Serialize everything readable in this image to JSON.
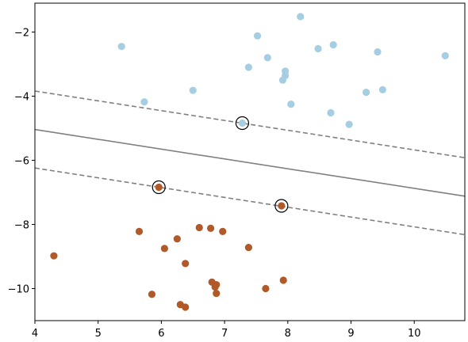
{
  "chart_data": {
    "type": "scatter",
    "title": "",
    "xlabel": "",
    "ylabel": "",
    "xlim": [
      4.0,
      10.8
    ],
    "ylim": [
      -11.0,
      -1.1
    ],
    "xticks": [
      4,
      5,
      6,
      7,
      8,
      9,
      10
    ],
    "yticks": [
      -10,
      -8,
      -6,
      -4,
      -2
    ],
    "xtick_labels": [
      "4",
      "5",
      "6",
      "7",
      "8",
      "9",
      "10"
    ],
    "ytick_labels": [
      "−10",
      "−8",
      "−6",
      "−4",
      "−2"
    ],
    "grid": false,
    "series": [
      {
        "color": "#a6cee3",
        "points": [
          [
            5.37,
            -2.45
          ],
          [
            5.73,
            -4.18
          ],
          [
            6.5,
            -3.82
          ],
          [
            7.28,
            -4.84
          ],
          [
            7.38,
            -3.1
          ],
          [
            7.52,
            -2.12
          ],
          [
            7.68,
            -2.8
          ],
          [
            7.92,
            -3.5
          ],
          [
            7.96,
            -3.36
          ],
          [
            7.96,
            -3.22
          ],
          [
            8.05,
            -4.25
          ],
          [
            8.2,
            -1.52
          ],
          [
            8.48,
            -2.52
          ],
          [
            8.68,
            -4.52
          ],
          [
            8.72,
            -2.4
          ],
          [
            8.97,
            -4.88
          ],
          [
            9.24,
            -3.88
          ],
          [
            9.42,
            -2.62
          ],
          [
            9.5,
            -3.8
          ],
          [
            10.49,
            -2.74
          ]
        ]
      },
      {
        "color": "#b15928",
        "points": [
          [
            4.3,
            -8.98
          ],
          [
            5.65,
            -8.22
          ],
          [
            5.85,
            -10.18
          ],
          [
            5.96,
            -6.84
          ],
          [
            6.05,
            -8.75
          ],
          [
            6.25,
            -8.45
          ],
          [
            6.3,
            -10.5
          ],
          [
            6.38,
            -9.22
          ],
          [
            6.38,
            -10.58
          ],
          [
            6.6,
            -8.1
          ],
          [
            6.78,
            -8.12
          ],
          [
            6.8,
            -9.8
          ],
          [
            6.85,
            -9.95
          ],
          [
            6.87,
            -10.15
          ],
          [
            6.87,
            -9.88
          ],
          [
            6.97,
            -8.22
          ],
          [
            7.38,
            -8.72
          ],
          [
            7.65,
            -10.0
          ],
          [
            7.9,
            -7.42
          ],
          [
            7.93,
            -9.74
          ]
        ]
      }
    ],
    "support_vectors": [
      [
        7.28,
        -4.84
      ],
      [
        5.96,
        -6.84
      ],
      [
        7.9,
        -7.42
      ]
    ],
    "decision_boundary": {
      "style": "solid",
      "color": "#808080",
      "points": [
        [
          4.0,
          -5.04
        ],
        [
          10.8,
          -7.12
        ]
      ]
    },
    "margins": [
      {
        "style": "dashed",
        "color": "#808080",
        "points": [
          [
            4.0,
            -3.84
          ],
          [
            10.8,
            -5.92
          ]
        ]
      },
      {
        "style": "dashed",
        "color": "#808080",
        "points": [
          [
            4.0,
            -6.24
          ],
          [
            10.8,
            -8.32
          ]
        ]
      }
    ]
  }
}
